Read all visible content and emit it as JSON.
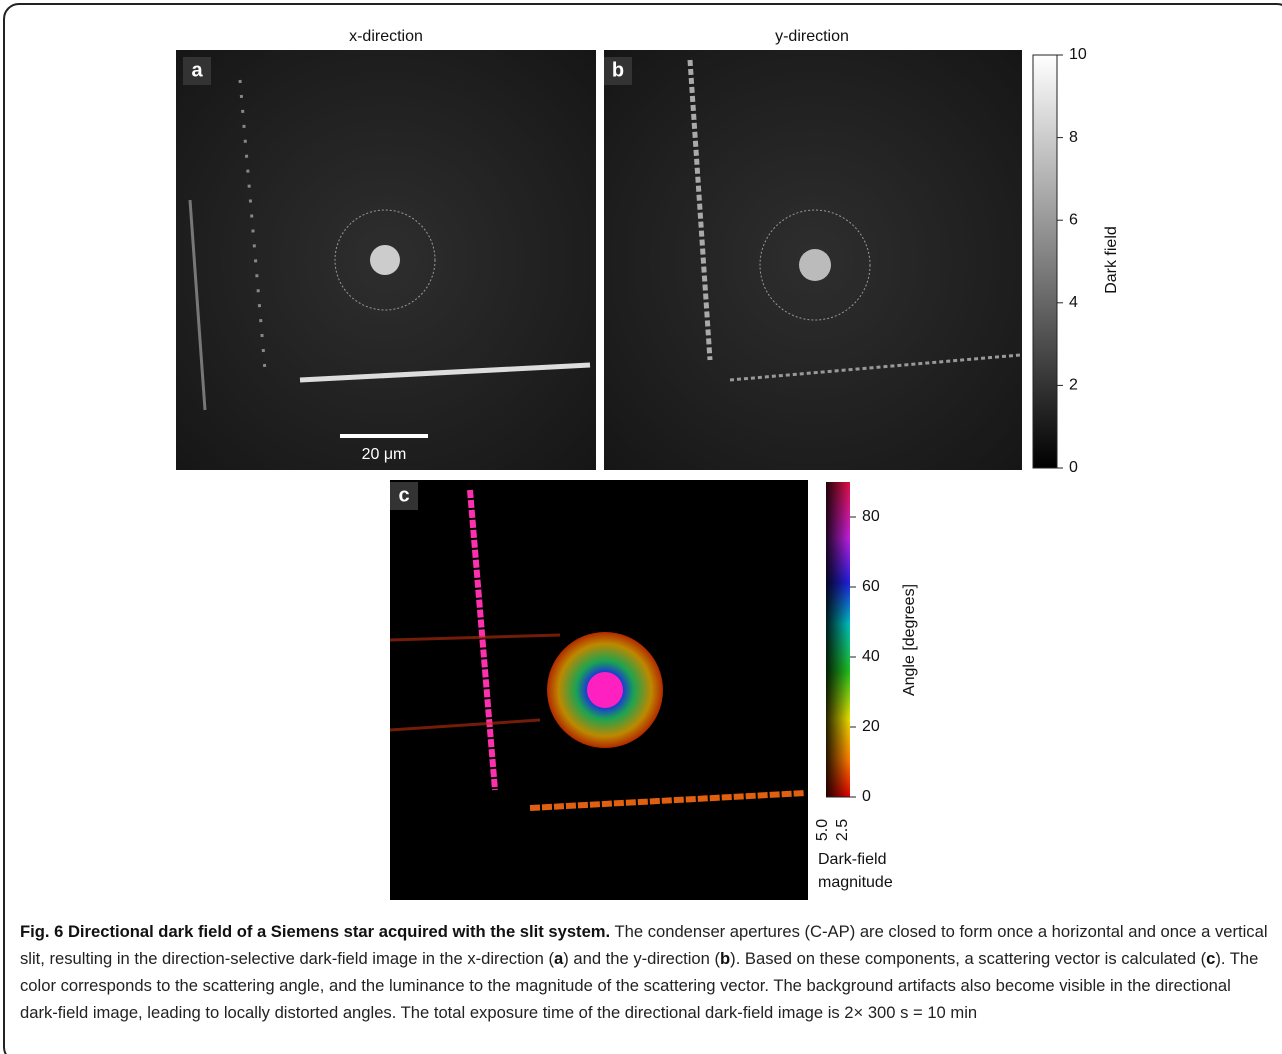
{
  "panels": [
    {
      "label": "a",
      "title": "x-direction",
      "scale_bar": "20 μm"
    },
    {
      "label": "b",
      "title": "y-direction"
    },
    {
      "label": "c"
    }
  ],
  "colorbars": [
    {
      "title": "Dark field",
      "ticks": [
        0,
        2,
        4,
        6,
        8,
        10
      ],
      "range": [
        0,
        10
      ]
    },
    {
      "title": "Angle [degrees]",
      "ticks": [
        0,
        20,
        40,
        60,
        80
      ],
      "range": [
        0,
        90
      ],
      "magnitude_ticks": [
        "5.0",
        "2.5"
      ],
      "magnitude_title": [
        "Dark-field",
        "magnitude"
      ]
    }
  ],
  "caption": {
    "title": "Fig. 6 Directional dark field of a Siemens star acquired with the slit system.",
    "body": [
      "The condenser apertures (C-AP) are closed to form once a horizontal and once a vertical slit, resulting in the direction-selective dark-field image in the x-direction (",
      "a",
      ") and the y-direction (",
      "b",
      "). Based on these components, a scattering vector is calculated (",
      "c",
      "). The color corresponds to the scattering angle, and the luminance to the magnitude of the scattering vector. The background artifacts also become visible in the directional dark-field image, leading to locally distorted angles. The total exposure time of the directional dark-field image is 2× 300 s = 10 min"
    ]
  }
}
